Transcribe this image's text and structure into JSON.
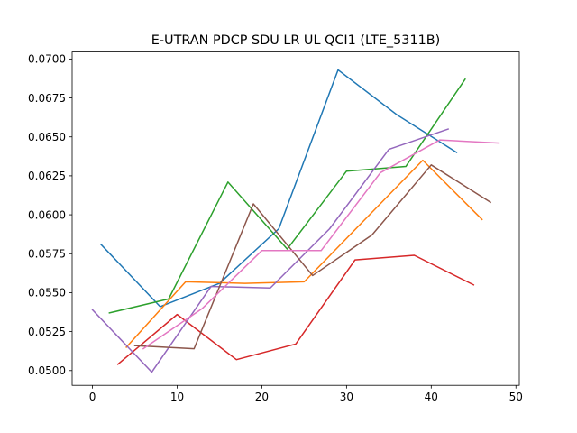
{
  "chart_data": {
    "type": "line",
    "title": "E-UTRAN PDCP SDU LR UL QCI1 (LTE_5311B)",
    "xlabel": "",
    "ylabel": "",
    "xlim": [
      -2.4,
      50.4
    ],
    "ylim": [
      0.04905,
      0.07045
    ],
    "x_ticks": [
      0,
      10,
      20,
      30,
      40,
      50
    ],
    "y_ticks": [
      0.05,
      0.0525,
      0.055,
      0.0575,
      0.06,
      0.0625,
      0.065,
      0.0675,
      0.07
    ],
    "x_tick_labels": [
      "0",
      "10",
      "20",
      "30",
      "40",
      "50"
    ],
    "y_tick_labels": [
      "0.0500",
      "0.0525",
      "0.0550",
      "0.0575",
      "0.0600",
      "0.0625",
      "0.0650",
      "0.0675",
      "0.0700"
    ],
    "grid": false,
    "legend": "none",
    "series": [
      {
        "color": "#1f77b4",
        "x": [
          1,
          8,
          15,
          22,
          29,
          36,
          43
        ],
        "y": [
          0.0581,
          0.0541,
          0.0556,
          0.0591,
          0.0693,
          0.0664,
          0.064
        ]
      },
      {
        "color": "#ff7f0e",
        "x": [
          4,
          11,
          18,
          25,
          32,
          39,
          46
        ],
        "y": [
          0.0515,
          0.0557,
          0.0556,
          0.0557,
          0.0596,
          0.0635,
          0.0597
        ]
      },
      {
        "color": "#2ca02c",
        "x": [
          2,
          9,
          16,
          23,
          30,
          37,
          44
        ],
        "y": [
          0.0537,
          0.0546,
          0.0621,
          0.0578,
          0.0628,
          0.0631,
          0.0687
        ]
      },
      {
        "color": "#d62728",
        "x": [
          3,
          10,
          17,
          24,
          31,
          38,
          45
        ],
        "y": [
          0.0504,
          0.0536,
          0.0507,
          0.0517,
          0.0571,
          0.0574,
          0.0555
        ]
      },
      {
        "color": "#9467bd",
        "x": [
          0,
          7,
          14,
          21,
          28,
          35,
          42
        ],
        "y": [
          0.0539,
          0.0499,
          0.0554,
          0.0553,
          0.0591,
          0.0642,
          0.0655
        ]
      },
      {
        "color": "#8c564b",
        "x": [
          5,
          12,
          19,
          26,
          33,
          40,
          47
        ],
        "y": [
          0.0516,
          0.0514,
          0.0607,
          0.0561,
          0.0587,
          0.0632,
          0.0608
        ]
      },
      {
        "color": "#e377c2",
        "x": [
          6,
          13,
          20,
          27,
          34,
          41,
          48
        ],
        "y": [
          0.0514,
          0.054,
          0.0577,
          0.0577,
          0.0627,
          0.0648,
          0.0646
        ]
      }
    ]
  }
}
